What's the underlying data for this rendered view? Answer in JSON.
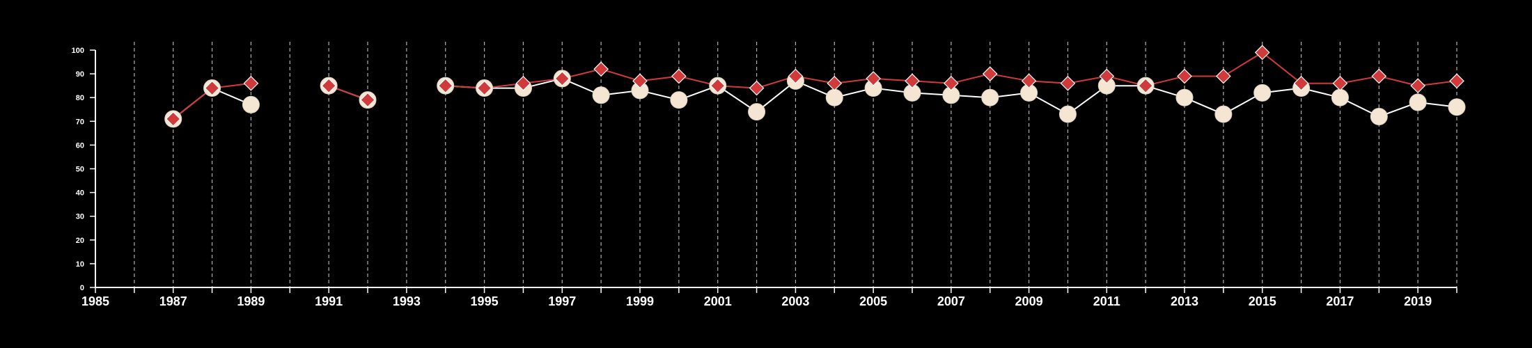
{
  "chart_data": {
    "type": "line",
    "title": "",
    "xlabel": "",
    "ylabel": "",
    "xlim": [
      1985,
      2020
    ],
    "ylim": [
      0,
      100
    ],
    "x_ticks": [
      "1985",
      "1987",
      "1989",
      "1991",
      "1993",
      "1995",
      "1997",
      "1999",
      "2001",
      "2003",
      "2005",
      "2007",
      "2009",
      "2011",
      "2013",
      "2015",
      "2017",
      "2019"
    ],
    "y_ticks": [
      "0",
      "10",
      "20",
      "30",
      "40",
      "50",
      "60",
      "70",
      "80",
      "90",
      "100"
    ],
    "grid": "vertical dashed lines at each year",
    "legend": "none",
    "series": [
      {
        "marker": "circle",
        "line_color": "#ffffff",
        "marker_color": "#f5e6d3",
        "points": [
          {
            "x": 1987,
            "y": 71
          },
          {
            "x": 1988,
            "y": 84
          },
          {
            "x": 1989,
            "y": 77
          },
          {
            "x": 1991,
            "y": 85
          },
          {
            "x": 1992,
            "y": 79
          },
          {
            "x": 1994,
            "y": 85
          },
          {
            "x": 1995,
            "y": 84
          },
          {
            "x": 1996,
            "y": 84
          },
          {
            "x": 1997,
            "y": 88
          },
          {
            "x": 1998,
            "y": 81
          },
          {
            "x": 1999,
            "y": 83
          },
          {
            "x": 2000,
            "y": 79
          },
          {
            "x": 2001,
            "y": 85
          },
          {
            "x": 2002,
            "y": 74
          },
          {
            "x": 2003,
            "y": 87
          },
          {
            "x": 2004,
            "y": 80
          },
          {
            "x": 2005,
            "y": 84
          },
          {
            "x": 2006,
            "y": 82
          },
          {
            "x": 2007,
            "y": 81
          },
          {
            "x": 2008,
            "y": 80
          },
          {
            "x": 2009,
            "y": 82
          },
          {
            "x": 2010,
            "y": 73
          },
          {
            "x": 2011,
            "y": 85
          },
          {
            "x": 2012,
            "y": 85
          },
          {
            "x": 2013,
            "y": 80
          },
          {
            "x": 2014,
            "y": 73
          },
          {
            "x": 2015,
            "y": 82
          },
          {
            "x": 2016,
            "y": 84
          },
          {
            "x": 2017,
            "y": 80
          },
          {
            "x": 2018,
            "y": 72
          },
          {
            "x": 2019,
            "y": 78
          },
          {
            "x": 2020,
            "y": 76
          }
        ]
      },
      {
        "marker": "diamond",
        "line_color": "#d03a3a",
        "marker_color": "#d03a3a",
        "points": [
          {
            "x": 1987,
            "y": 71
          },
          {
            "x": 1988,
            "y": 84
          },
          {
            "x": 1989,
            "y": 86
          },
          {
            "x": 1991,
            "y": 85
          },
          {
            "x": 1992,
            "y": 79
          },
          {
            "x": 1994,
            "y": 85
          },
          {
            "x": 1995,
            "y": 84
          },
          {
            "x": 1996,
            "y": 86
          },
          {
            "x": 1997,
            "y": 88
          },
          {
            "x": 1998,
            "y": 92
          },
          {
            "x": 1999,
            "y": 87
          },
          {
            "x": 2000,
            "y": 89
          },
          {
            "x": 2001,
            "y": 85
          },
          {
            "x": 2002,
            "y": 84
          },
          {
            "x": 2003,
            "y": 89
          },
          {
            "x": 2004,
            "y": 86
          },
          {
            "x": 2005,
            "y": 88
          },
          {
            "x": 2006,
            "y": 87
          },
          {
            "x": 2007,
            "y": 86
          },
          {
            "x": 2008,
            "y": 90
          },
          {
            "x": 2009,
            "y": 87
          },
          {
            "x": 2010,
            "y": 86
          },
          {
            "x": 2011,
            "y": 89
          },
          {
            "x": 2012,
            "y": 85
          },
          {
            "x": 2013,
            "y": 89
          },
          {
            "x": 2014,
            "y": 89
          },
          {
            "x": 2015,
            "y": 99
          },
          {
            "x": 2016,
            "y": 86
          },
          {
            "x": 2017,
            "y": 86
          },
          {
            "x": 2018,
            "y": 89
          },
          {
            "x": 2019,
            "y": 85
          },
          {
            "x": 2020,
            "y": 87
          }
        ]
      }
    ]
  }
}
